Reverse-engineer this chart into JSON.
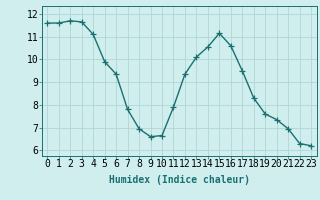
{
  "x": [
    0,
    1,
    2,
    3,
    4,
    5,
    6,
    7,
    8,
    9,
    10,
    11,
    12,
    13,
    14,
    15,
    16,
    17,
    18,
    19,
    20,
    21,
    22,
    23
  ],
  "y": [
    11.6,
    11.6,
    11.7,
    11.65,
    11.1,
    9.9,
    9.35,
    7.8,
    6.95,
    6.6,
    6.65,
    7.9,
    9.35,
    10.1,
    10.55,
    11.15,
    10.6,
    9.5,
    8.3,
    7.6,
    7.35,
    6.95,
    6.3,
    6.2
  ],
  "line_color": "#1a7070",
  "marker": "+",
  "marker_size": 4,
  "bg_color": "#d0eeee",
  "grid_color": "#b0d5d5",
  "xlabel": "Humidex (Indice chaleur)",
  "ylabel_ticks": [
    6,
    7,
    8,
    9,
    10,
    11,
    12
  ],
  "xlim": [
    -0.5,
    23.5
  ],
  "ylim": [
    5.75,
    12.35
  ],
  "xlabel_fontsize": 7,
  "tick_fontsize": 7,
  "line_width": 1.0
}
